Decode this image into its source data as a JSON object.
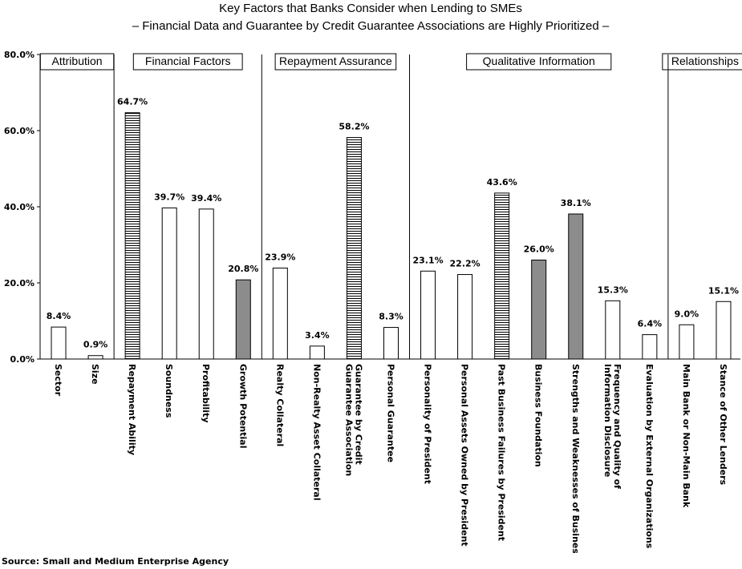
{
  "chart_data": {
    "type": "bar",
    "title": "Key Factors that Banks Consider when Lending to SMEs",
    "subtitle": "– Financial Data and Guarantee by Credit Guarantee Associations are Highly Prioritized –",
    "ylim": [
      0,
      80
    ],
    "y_ticks": [
      "0.0%",
      "20.0%",
      "40.0%",
      "60.0%",
      "80.0%"
    ],
    "categories": [
      "Sector",
      "Size",
      "Repayment Ability",
      "Soundness",
      "Profitability",
      "Growth Potential",
      "Realty Collateral",
      "Non-Realty Asset Collateral",
      "Guarantee by Credit Guarantee Association",
      "Personal Guarantee",
      "Personality of President",
      "Personal Assets Owned by President",
      "Past Business Failures by President",
      "Business Foundation",
      "Strengths and Weaknesses of Business",
      "Frequency and Quality of Information Disclosure",
      "Evaluation by External Organizations",
      "Main Bank or Non-Main Bank",
      "Stance of Other Lenders"
    ],
    "category_lines": [
      [
        "Sector"
      ],
      [
        "Size"
      ],
      [
        "Repayment Ability"
      ],
      [
        "Soundness"
      ],
      [
        "Profitability"
      ],
      [
        "Growth Potential"
      ],
      [
        "Realty Collateral"
      ],
      [
        "Non-Realty Asset Collateral"
      ],
      [
        "Guarantee by Credit",
        "Guarantee Association"
      ],
      [
        "Personal Guarantee"
      ],
      [
        "Personality of President"
      ],
      [
        "Personal Assets Owned by President"
      ],
      [
        "Past Business Failures by President"
      ],
      [
        "Business Foundation"
      ],
      [
        "Strengths and Weaknesses of Business"
      ],
      [
        "Frequency and Quality of",
        "Information Disclosure"
      ],
      [
        "Evaluation by External Organizations"
      ],
      [
        "Main Bank or Non-Main Bank"
      ],
      [
        "Stance of Other Lenders"
      ]
    ],
    "values": [
      8.4,
      0.9,
      64.7,
      39.7,
      39.4,
      20.8,
      23.9,
      3.4,
      58.2,
      8.3,
      23.1,
      22.2,
      43.6,
      26.0,
      38.1,
      15.3,
      6.4,
      9.0,
      15.1
    ],
    "value_labels": [
      "8.4%",
      "0.9%",
      "64.7%",
      "39.7%",
      "39.4%",
      "20.8%",
      "23.9%",
      "3.4%",
      "58.2%",
      "8.3%",
      "23.1%",
      "22.2%",
      "43.6%",
      "26.0%",
      "38.1%",
      "15.3%",
      "6.4%",
      "9.0%",
      "15.1%"
    ],
    "bar_styles": [
      "plain",
      "plain",
      "hatched",
      "plain",
      "plain",
      "gray",
      "plain",
      "plain",
      "hatched",
      "plain",
      "plain",
      "plain",
      "hatched",
      "gray",
      "gray",
      "plain",
      "plain",
      "plain",
      "plain"
    ],
    "groups": [
      {
        "name": "Attribution",
        "start": 0,
        "end": 1
      },
      {
        "name": "Financial Factors",
        "start": 2,
        "end": 5
      },
      {
        "name": "Repayment Assurance",
        "start": 6,
        "end": 9
      },
      {
        "name": "Qualitative Information",
        "start": 10,
        "end": 16
      },
      {
        "name": "Relationships",
        "start": 17,
        "end": 18
      }
    ],
    "colors": {
      "plain": "#ffffff",
      "gray": "#8c8c8c",
      "hatch": "#000000"
    },
    "grid": false,
    "source": "Source: Small and Medium Enterprise Agency"
  }
}
